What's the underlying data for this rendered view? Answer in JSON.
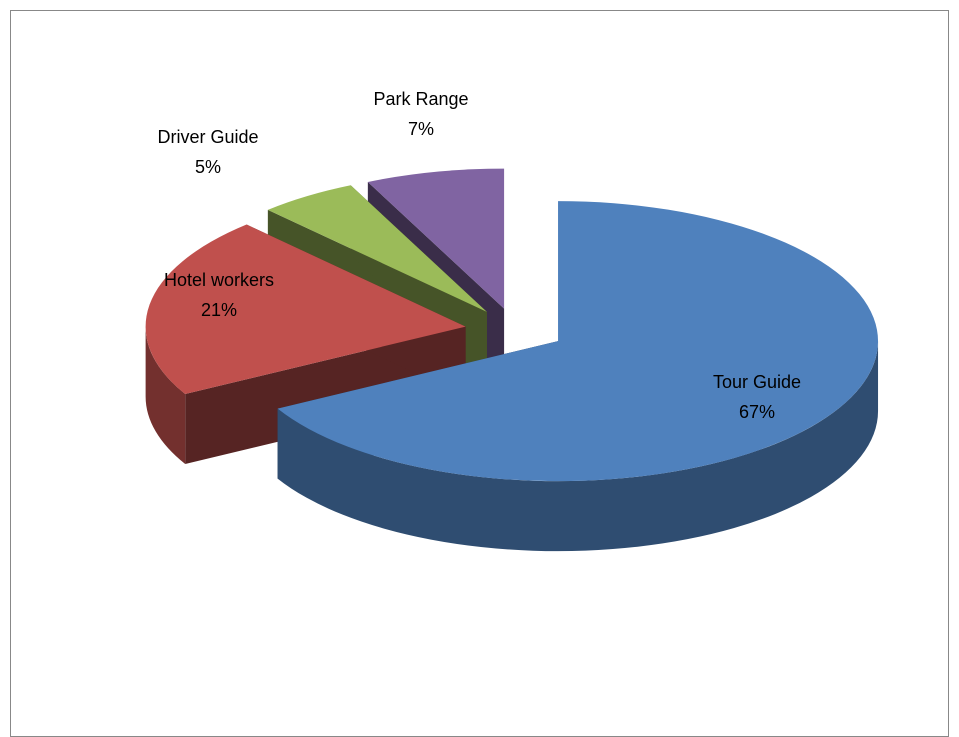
{
  "chart_data": {
    "type": "pie",
    "categories": [
      "Tour Guide",
      "Hotel workers",
      "Driver Guide",
      "Park Range"
    ],
    "values": [
      67,
      21,
      5,
      7
    ],
    "value_labels": [
      "67%",
      "21%",
      "5%",
      "7%"
    ],
    "colors": [
      "#4f81bd",
      "#c0504d",
      "#9bbb59",
      "#8064a2"
    ]
  }
}
